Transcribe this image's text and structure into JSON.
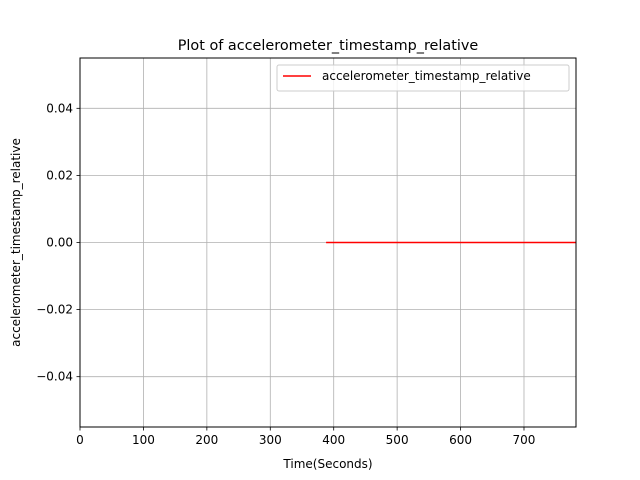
{
  "chart_data": {
    "type": "line",
    "title": "Plot of accelerometer_timestamp_relative",
    "xlabel": "Time(Seconds)",
    "ylabel": "accelerometer_timestamp_relative",
    "xlim": [
      0,
      782
    ],
    "ylim": [
      -0.055,
      0.055
    ],
    "xticks": [
      0,
      100,
      200,
      300,
      400,
      500,
      600,
      700
    ],
    "yticks": [
      -0.04,
      -0.02,
      0.0,
      0.02,
      0.04
    ],
    "ytick_labels": [
      "−0.04",
      "−0.02",
      "0.00",
      "0.02",
      "0.04"
    ],
    "grid": true,
    "legend_position": "upper-right",
    "series": [
      {
        "name": "accelerometer_timestamp_relative",
        "color": "#ff0000",
        "x": [
          388,
          782
        ],
        "y": [
          0.0,
          0.0
        ]
      }
    ]
  }
}
